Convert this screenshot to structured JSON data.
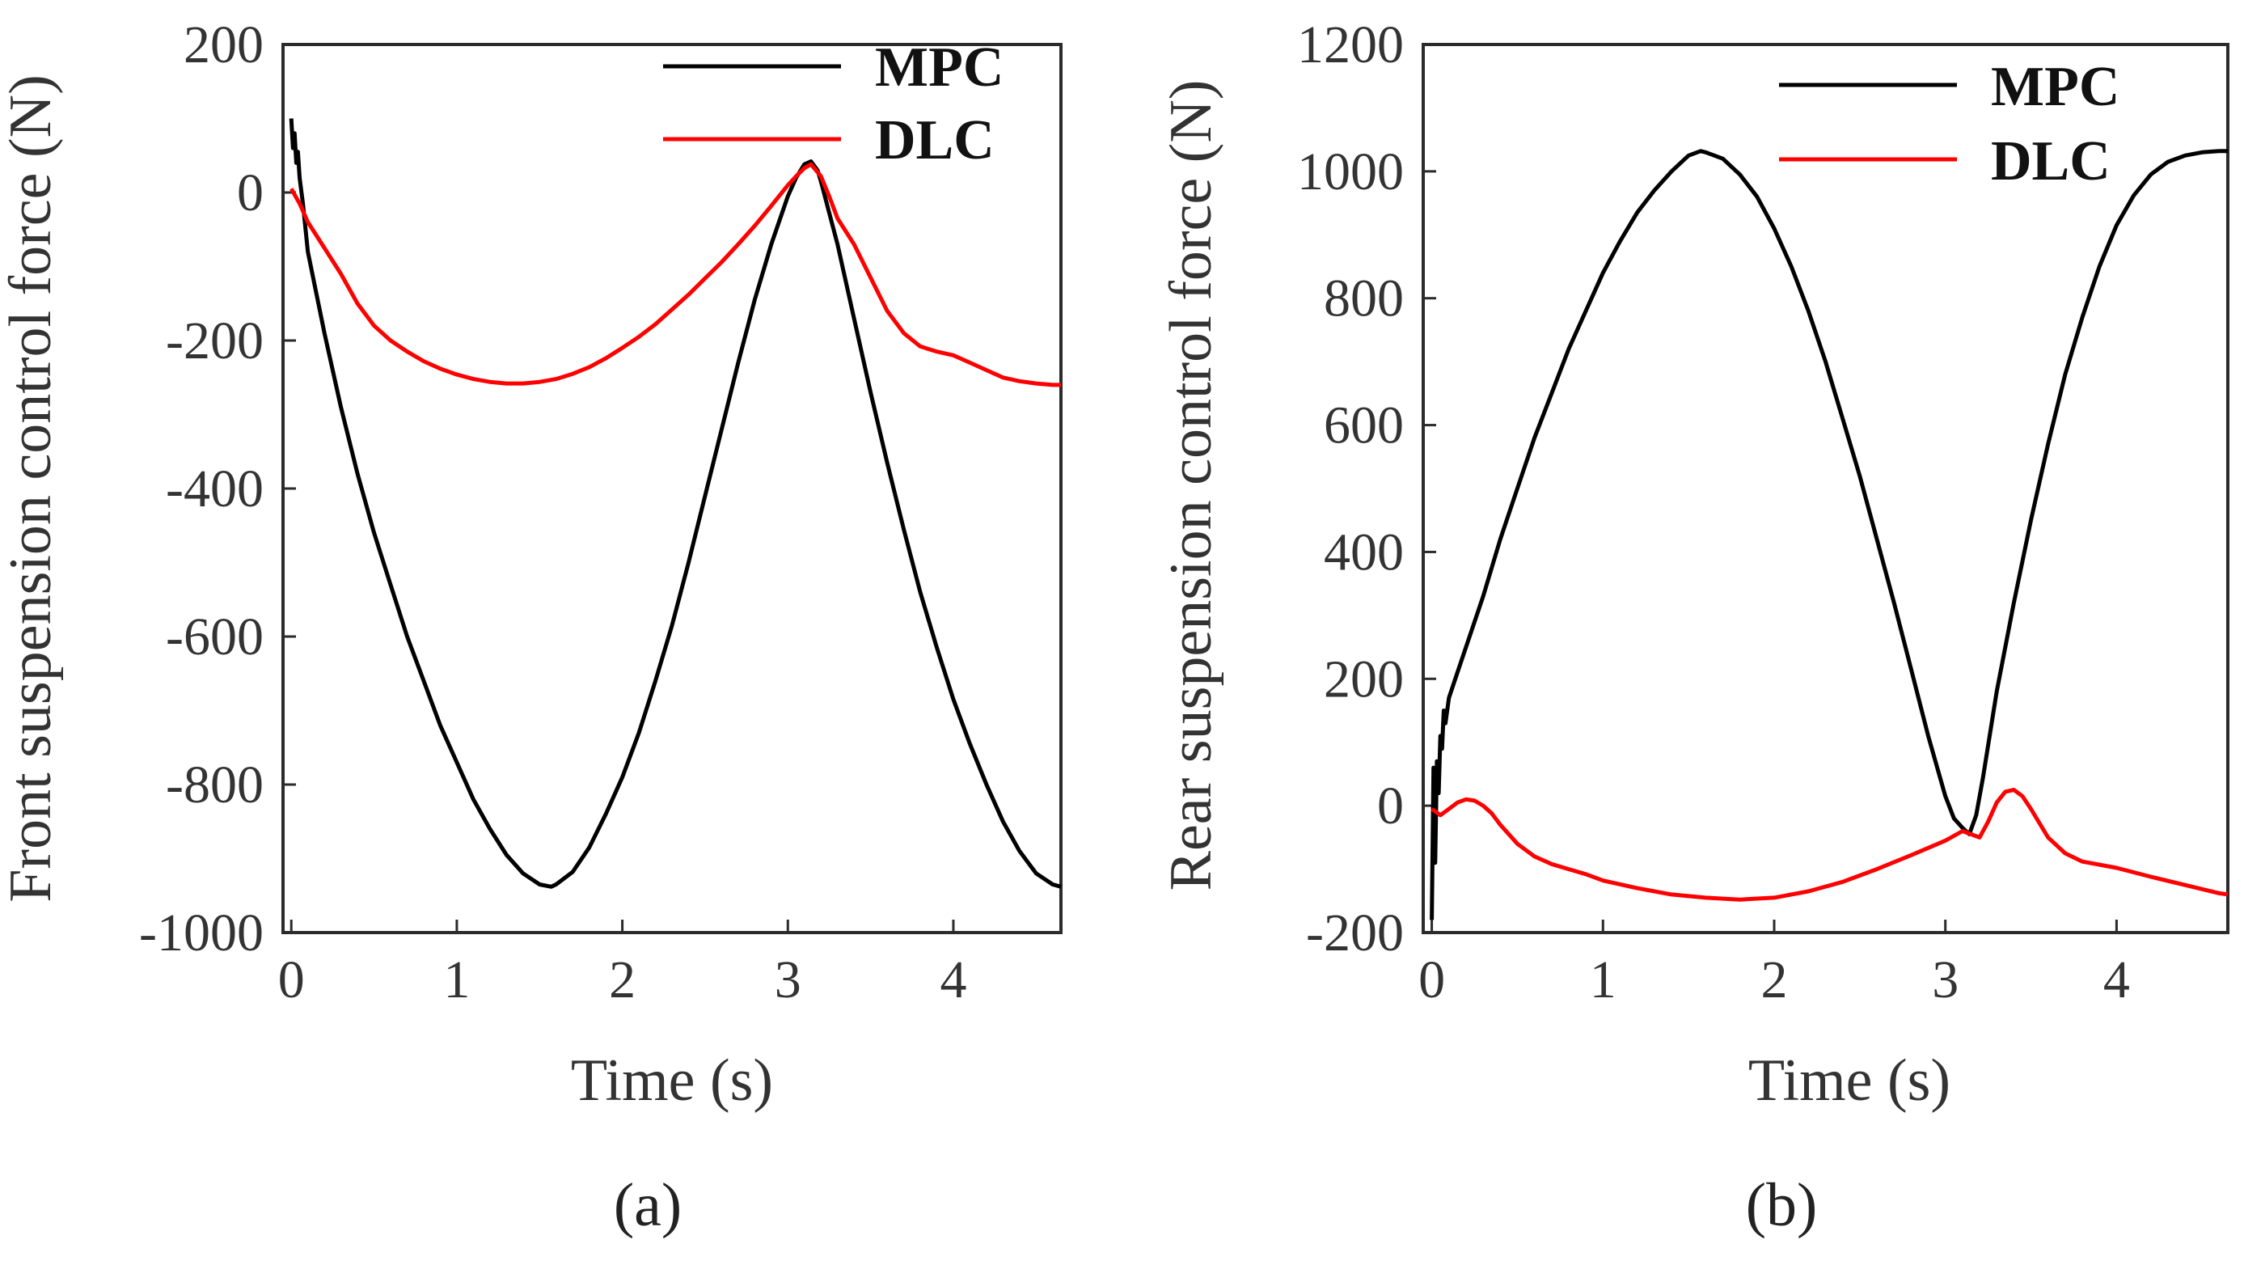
{
  "chart_data": [
    {
      "panel": "a",
      "type": "line",
      "title": "",
      "xlabel": "Time (s)",
      "ylabel": "Front  suspension control force (N)",
      "xlim": [
        -0.05,
        4.65
      ],
      "ylim": [
        -1000,
        200
      ],
      "xticks": [
        0,
        1,
        2,
        3,
        4
      ],
      "yticks": [
        -1000,
        -800,
        -600,
        -400,
        -200,
        0,
        200
      ],
      "grid": false,
      "legend_position": "top-right",
      "series": [
        {
          "name": "MPC",
          "color": "#000000",
          "x": [
            0,
            0.01,
            0.02,
            0.03,
            0.04,
            0.05,
            0.07,
            0.1,
            0.2,
            0.3,
            0.4,
            0.5,
            0.6,
            0.7,
            0.8,
            0.9,
            1.0,
            1.1,
            1.2,
            1.3,
            1.4,
            1.5,
            1.57,
            1.6,
            1.7,
            1.8,
            1.9,
            2.0,
            2.1,
            2.2,
            2.3,
            2.4,
            2.5,
            2.6,
            2.7,
            2.8,
            2.9,
            3.0,
            3.05,
            3.1,
            3.14,
            3.18,
            3.2,
            3.3,
            3.4,
            3.5,
            3.6,
            3.7,
            3.8,
            3.9,
            4.0,
            4.1,
            4.2,
            4.3,
            4.4,
            4.5,
            4.6,
            4.65
          ],
          "y": [
            100,
            60,
            80,
            40,
            55,
            20,
            -15,
            -80,
            -190,
            -290,
            -380,
            -460,
            -530,
            -600,
            -660,
            -720,
            -770,
            -820,
            -860,
            -895,
            -920,
            -935,
            -938,
            -935,
            -918,
            -885,
            -840,
            -790,
            -730,
            -660,
            -585,
            -500,
            -410,
            -320,
            -230,
            -145,
            -70,
            -5,
            20,
            38,
            42,
            30,
            15,
            -70,
            -170,
            -270,
            -365,
            -455,
            -540,
            -615,
            -685,
            -745,
            -800,
            -850,
            -890,
            -920,
            -935,
            -938
          ]
        },
        {
          "name": "DLC",
          "color": "#ff0000",
          "x": [
            0,
            0.05,
            0.1,
            0.2,
            0.3,
            0.4,
            0.5,
            0.6,
            0.7,
            0.8,
            0.9,
            1.0,
            1.1,
            1.2,
            1.3,
            1.4,
            1.5,
            1.6,
            1.7,
            1.8,
            1.9,
            2.0,
            2.1,
            2.2,
            2.3,
            2.4,
            2.5,
            2.6,
            2.7,
            2.8,
            2.9,
            3.0,
            3.05,
            3.1,
            3.14,
            3.2,
            3.25,
            3.3,
            3.4,
            3.5,
            3.6,
            3.7,
            3.8,
            3.9,
            4.0,
            4.1,
            4.2,
            4.3,
            4.4,
            4.5,
            4.6,
            4.65
          ],
          "y": [
            5,
            -15,
            -40,
            -75,
            -110,
            -150,
            -180,
            -200,
            -215,
            -228,
            -238,
            -246,
            -252,
            -256,
            -258,
            -258,
            -256,
            -252,
            -245,
            -236,
            -224,
            -210,
            -195,
            -178,
            -158,
            -138,
            -116,
            -94,
            -70,
            -45,
            -18,
            10,
            22,
            33,
            38,
            22,
            -5,
            -35,
            -70,
            -115,
            -160,
            -190,
            -208,
            -215,
            -220,
            -230,
            -240,
            -250,
            -255,
            -258,
            -260,
            -260
          ]
        }
      ]
    },
    {
      "panel": "b",
      "type": "line",
      "title": "",
      "xlabel": "Time (s)",
      "ylabel": "Rear suspension control force (N)",
      "xlim": [
        -0.05,
        4.65
      ],
      "ylim": [
        -200,
        1200
      ],
      "xticks": [
        0,
        1,
        2,
        3,
        4
      ],
      "yticks": [
        -200,
        0,
        200,
        400,
        600,
        800,
        1000,
        1200
      ],
      "grid": false,
      "legend_position": "top-right",
      "series": [
        {
          "name": "MPC",
          "color": "#000000",
          "x": [
            0,
            0.01,
            0.02,
            0.03,
            0.04,
            0.05,
            0.06,
            0.07,
            0.08,
            0.1,
            0.15,
            0.2,
            0.3,
            0.4,
            0.5,
            0.6,
            0.7,
            0.8,
            0.9,
            1.0,
            1.1,
            1.2,
            1.3,
            1.4,
            1.5,
            1.57,
            1.6,
            1.7,
            1.8,
            1.9,
            2.0,
            2.1,
            2.2,
            2.3,
            2.4,
            2.5,
            2.6,
            2.7,
            2.8,
            2.9,
            3.0,
            3.05,
            3.1,
            3.14,
            3.18,
            3.22,
            3.3,
            3.4,
            3.5,
            3.6,
            3.7,
            3.8,
            3.9,
            4.0,
            4.1,
            4.2,
            4.3,
            4.4,
            4.5,
            4.6,
            4.65
          ],
          "y": [
            -180,
            60,
            -90,
            70,
            20,
            110,
            90,
            150,
            130,
            170,
            210,
            250,
            330,
            420,
            500,
            580,
            650,
            720,
            780,
            840,
            890,
            935,
            970,
            1000,
            1025,
            1032,
            1030,
            1020,
            995,
            960,
            910,
            850,
            780,
            700,
            610,
            520,
            420,
            320,
            215,
            110,
            15,
            -20,
            -35,
            -45,
            -15,
            45,
            180,
            320,
            450,
            570,
            680,
            770,
            850,
            915,
            962,
            995,
            1015,
            1025,
            1030,
            1032,
            1032
          ]
        },
        {
          "name": "DLC",
          "color": "#ff0000",
          "x": [
            0,
            0.05,
            0.1,
            0.15,
            0.2,
            0.25,
            0.3,
            0.35,
            0.4,
            0.5,
            0.6,
            0.7,
            0.8,
            0.9,
            1.0,
            1.2,
            1.4,
            1.6,
            1.8,
            2.0,
            2.2,
            2.4,
            2.6,
            2.8,
            3.0,
            3.1,
            3.15,
            3.2,
            3.25,
            3.3,
            3.35,
            3.4,
            3.45,
            3.5,
            3.6,
            3.7,
            3.8,
            4.0,
            4.2,
            4.4,
            4.6,
            4.65
          ],
          "y": [
            -5,
            -15,
            -5,
            5,
            10,
            8,
            0,
            -12,
            -30,
            -60,
            -80,
            -92,
            -100,
            -108,
            -118,
            -130,
            -140,
            -145,
            -148,
            -145,
            -135,
            -120,
            -100,
            -78,
            -55,
            -40,
            -45,
            -50,
            -25,
            5,
            22,
            25,
            15,
            -5,
            -50,
            -75,
            -88,
            -98,
            -112,
            -125,
            -138,
            -140
          ]
        }
      ]
    }
  ],
  "legend_labels": {
    "mpc": "MPC",
    "dlc": "DLC"
  },
  "subfigure_labels": {
    "a": "(a)",
    "b": "(b)"
  }
}
